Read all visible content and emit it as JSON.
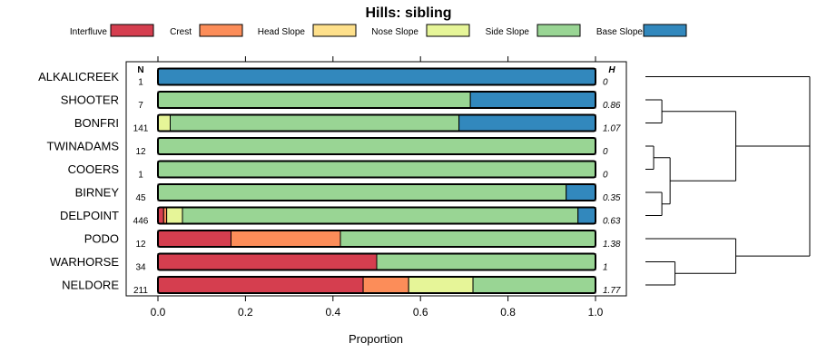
{
  "chart_data": {
    "type": "bar",
    "orientation": "horizontal-stacked",
    "title": "Hills: sibling",
    "xlabel": "Proportion",
    "ylabel": "",
    "xlim": [
      0,
      1
    ],
    "xticks": [
      "0.0",
      "0.2",
      "0.4",
      "0.6",
      "0.8",
      "1.0"
    ],
    "n_header": "N",
    "h_header": "H",
    "legend_position": "top",
    "legend": [
      {
        "name": "Interfluve",
        "color": "#d53e4f"
      },
      {
        "name": "Crest",
        "color": "#fc8d59"
      },
      {
        "name": "Head Slope",
        "color": "#fee08b"
      },
      {
        "name": "Nose Slope",
        "color": "#e6f598"
      },
      {
        "name": "Side Slope",
        "color": "#99d594"
      },
      {
        "name": "Base Slope",
        "color": "#3288bd"
      }
    ],
    "categories": [
      "ALKALICREEK",
      "SHOOTER",
      "BONFRI",
      "TWINADAMS",
      "COOERS",
      "BIRNEY",
      "DELPOINT",
      "PODO",
      "WARHORSE",
      "NELDORE"
    ],
    "n": [
      "1",
      "7",
      "141",
      "12",
      "1",
      "45",
      "446",
      "12",
      "34",
      "211"
    ],
    "h": [
      "0",
      "0.86",
      "1.07",
      "0",
      "0",
      "0.35",
      "0.63",
      "1.38",
      "1",
      "1.77"
    ],
    "series": [
      {
        "name": "Interfluve",
        "values": [
          0,
          0,
          0,
          0,
          0,
          0,
          0.013,
          0.167,
          0.5,
          0.469
        ]
      },
      {
        "name": "Crest",
        "values": [
          0,
          0,
          0,
          0,
          0,
          0,
          0.007,
          0.25,
          0,
          0.104
        ]
      },
      {
        "name": "Head Slope",
        "values": [
          0,
          0,
          0,
          0,
          0,
          0,
          0,
          0,
          0,
          0
        ]
      },
      {
        "name": "Nose Slope",
        "values": [
          0,
          0,
          0.028,
          0,
          0,
          0,
          0.036,
          0,
          0,
          0.147
        ]
      },
      {
        "name": "Side Slope",
        "values": [
          0,
          0.714,
          0.66,
          1,
          1,
          0.933,
          0.904,
          0.583,
          0.5,
          0.28
        ]
      },
      {
        "name": "Base Slope",
        "values": [
          1,
          0.286,
          0.312,
          0,
          0,
          0.067,
          0.04,
          0,
          0,
          0
        ]
      }
    ],
    "dendrogram": {
      "label": "sibling similarity dendrogram",
      "merges": [
        {
          "a": "SHOOTER",
          "b": "BONFRI",
          "height": 0.1
        },
        {
          "a": "TWINADAMS",
          "b": "COOERS",
          "height": 0.05
        },
        {
          "a": "BIRNEY",
          "b": "DELPOINT",
          "height": 0.1
        },
        {
          "a": "TWINADAMS+COOERS",
          "b": "BIRNEY+DELPOINT",
          "height": 0.15
        },
        {
          "a": "SHOOTER+BONFRI",
          "b": "TWINADAMS+COOERS+BIRNEY+DELPOINT",
          "height": 0.55
        },
        {
          "a": "ALKALICREEK",
          "b": "SHOOTER..DELPOINT",
          "height": 1.0
        },
        {
          "a": "WARHORSE",
          "b": "NELDORE",
          "height": 0.18
        },
        {
          "a": "PODO",
          "b": "WARHORSE+NELDORE",
          "height": 0.55
        },
        {
          "a": "ALKALICREEK..DELPOINT",
          "b": "PODO+WARHORSE+NELDORE",
          "height": 1.0
        }
      ]
    }
  }
}
